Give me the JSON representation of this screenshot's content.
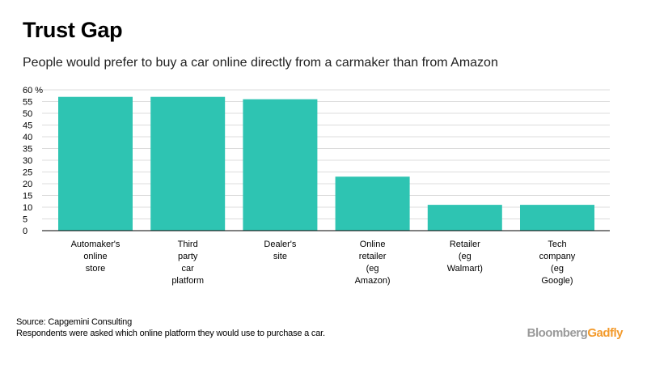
{
  "title": "Trust Gap",
  "subtitle": "People would prefer to buy a car online directly from a carmaker than from Amazon",
  "chart_data": {
    "type": "bar",
    "categories": [
      "Automaker's online store",
      "Third party car platform",
      "Dealer's site",
      "Online retailer (eg Amazon)",
      "Retailer (eg Walmart)",
      "Tech company (eg Google)"
    ],
    "category_lines": [
      [
        "Automaker's",
        "online",
        "store"
      ],
      [
        "Third",
        "party",
        "car",
        "platform"
      ],
      [
        "Dealer's",
        "site"
      ],
      [
        "Online",
        "retailer",
        "(eg",
        "Amazon)"
      ],
      [
        "Retailer",
        "(eg",
        "Walmart)"
      ],
      [
        "Tech",
        "company",
        "(eg",
        "Google)"
      ]
    ],
    "values": [
      57,
      57,
      56,
      23,
      11,
      11
    ],
    "ylim": [
      0,
      60
    ],
    "yticks": [
      0,
      5,
      10,
      15,
      20,
      25,
      30,
      35,
      40,
      45,
      50,
      55,
      60
    ],
    "ytick_labels": [
      "0",
      "5",
      "10",
      "15",
      "20",
      "25",
      "30",
      "35",
      "40",
      "45",
      "50",
      "55",
      "60 %"
    ],
    "bar_color": "#2ec4b2",
    "grid": true
  },
  "footer": {
    "source": "Source: Capgemini Consulting",
    "note": "Respondents were asked which online platform they would use to purchase a car."
  },
  "brand": {
    "part1": "Bloomberg",
    "part2": "Gadfly",
    "color1": "#9a9a9a",
    "color2": "#f39a2b"
  }
}
